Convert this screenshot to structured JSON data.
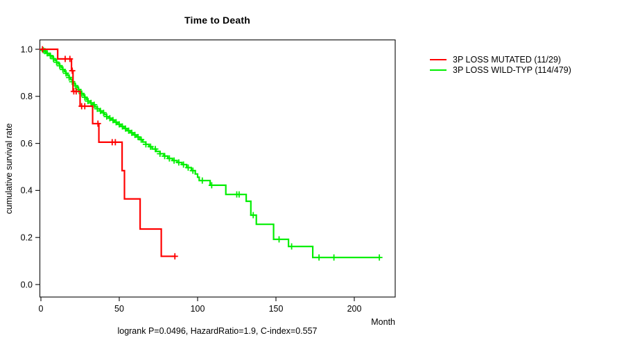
{
  "chart_data": {
    "type": "line",
    "subtype": "kaplan-meier-step-survival",
    "title": "Time to Death",
    "xlabel": "Month",
    "ylabel": "cumulative survival rate",
    "caption": "logrank P=0.0496, HazardRatio=1.9, C-index=0.557",
    "x_ticks": [
      0,
      50,
      100,
      150,
      200
    ],
    "y_ticks": [
      "0.0",
      "0.2",
      "0.4",
      "0.6",
      "0.8",
      "1.0"
    ],
    "xlim": [
      0,
      226
    ],
    "ylim": [
      0,
      1
    ],
    "grid": false,
    "legend_position": "right-outside",
    "series": [
      {
        "name": "3P LOSS MUTATED (11/29)",
        "color": "#ff0000",
        "start": [
          0,
          1.0
        ],
        "steps": [
          [
            10.7,
            0.959
          ],
          [
            19.5,
            0.909
          ],
          [
            20.5,
            0.821
          ],
          [
            25,
            0.758
          ],
          [
            33,
            0.684
          ],
          [
            37,
            0.605
          ],
          [
            51.8,
            0.484
          ],
          [
            53.3,
            0.364
          ],
          [
            63.3,
            0.236
          ],
          [
            76.8,
            0.12
          ]
        ],
        "end_month": 86,
        "censors": [
          [
            1,
            1.0
          ],
          [
            15.5,
            0.959
          ],
          [
            18.5,
            0.959
          ],
          [
            20,
            0.909
          ],
          [
            21,
            0.821
          ],
          [
            22.5,
            0.821
          ],
          [
            26,
            0.758
          ],
          [
            28,
            0.758
          ],
          [
            36.4,
            0.684
          ],
          [
            45.5,
            0.605
          ],
          [
            47.5,
            0.605
          ],
          [
            85.5,
            0.12
          ]
        ]
      },
      {
        "name": "3P LOSS WILD-TYP (114/479)",
        "color": "#00ee00",
        "start": [
          0,
          1.0
        ],
        "steps": [
          [
            1,
            0.996
          ],
          [
            2,
            0.992
          ],
          [
            3,
            0.988
          ],
          [
            4,
            0.983
          ],
          [
            5,
            0.979
          ],
          [
            6,
            0.973
          ],
          [
            7,
            0.967
          ],
          [
            8,
            0.96
          ],
          [
            9,
            0.953
          ],
          [
            10,
            0.945
          ],
          [
            11,
            0.938
          ],
          [
            12,
            0.93
          ],
          [
            13,
            0.922
          ],
          [
            14,
            0.914
          ],
          [
            15,
            0.906
          ],
          [
            16,
            0.898
          ],
          [
            17,
            0.889
          ],
          [
            18,
            0.88
          ],
          [
            19,
            0.871
          ],
          [
            20,
            0.862
          ],
          [
            21,
            0.853
          ],
          [
            22,
            0.845
          ],
          [
            23,
            0.837
          ],
          [
            24,
            0.829
          ],
          [
            25,
            0.82
          ],
          [
            26,
            0.812
          ],
          [
            27,
            0.804
          ],
          [
            28,
            0.796
          ],
          [
            29,
            0.788
          ],
          [
            30,
            0.78
          ],
          [
            31.5,
            0.772
          ],
          [
            33,
            0.764
          ],
          [
            34.5,
            0.755
          ],
          [
            36,
            0.747
          ],
          [
            37.5,
            0.738
          ],
          [
            39,
            0.73
          ],
          [
            40.5,
            0.722
          ],
          [
            42,
            0.714
          ],
          [
            43.5,
            0.707
          ],
          [
            45,
            0.699
          ],
          [
            47,
            0.69
          ],
          [
            49,
            0.681
          ],
          [
            51,
            0.672
          ],
          [
            53,
            0.663
          ],
          [
            55,
            0.654
          ],
          [
            57,
            0.645
          ],
          [
            59,
            0.636
          ],
          [
            61,
            0.627
          ],
          [
            63,
            0.616
          ],
          [
            65,
            0.606
          ],
          [
            67,
            0.596
          ],
          [
            69,
            0.586
          ],
          [
            71,
            0.576
          ],
          [
            73.5,
            0.566
          ],
          [
            76,
            0.556
          ],
          [
            78.5,
            0.546
          ],
          [
            81,
            0.536
          ],
          [
            84,
            0.527
          ],
          [
            87,
            0.519
          ],
          [
            90,
            0.51
          ],
          [
            93,
            0.497
          ],
          [
            96,
            0.484
          ],
          [
            98.5,
            0.47
          ],
          [
            100,
            0.456
          ],
          [
            101,
            0.442
          ],
          [
            108,
            0.422
          ],
          [
            118,
            0.383
          ],
          [
            131,
            0.354
          ],
          [
            134,
            0.295
          ],
          [
            137.5,
            0.256
          ],
          [
            148.5,
            0.192
          ],
          [
            158,
            0.162
          ],
          [
            173.5,
            0.115
          ]
        ],
        "end_month": 216.5,
        "censors": [
          [
            1.5,
            0.996
          ],
          [
            2.5,
            0.992
          ],
          [
            4,
            0.983
          ],
          [
            6,
            0.973
          ],
          [
            8,
            0.96
          ],
          [
            10,
            0.945
          ],
          [
            12,
            0.93
          ],
          [
            14,
            0.914
          ],
          [
            16,
            0.898
          ],
          [
            18,
            0.88
          ],
          [
            20,
            0.862
          ],
          [
            22,
            0.845
          ],
          [
            24,
            0.829
          ],
          [
            26,
            0.812
          ],
          [
            28,
            0.796
          ],
          [
            30,
            0.78
          ],
          [
            32,
            0.772
          ],
          [
            34,
            0.764
          ],
          [
            36,
            0.747
          ],
          [
            38,
            0.738
          ],
          [
            40,
            0.73
          ],
          [
            42,
            0.714
          ],
          [
            44,
            0.707
          ],
          [
            46,
            0.699
          ],
          [
            48,
            0.69
          ],
          [
            50,
            0.681
          ],
          [
            52,
            0.672
          ],
          [
            54,
            0.663
          ],
          [
            56,
            0.654
          ],
          [
            58,
            0.645
          ],
          [
            60,
            0.636
          ],
          [
            62,
            0.627
          ],
          [
            64,
            0.616
          ],
          [
            67,
            0.596
          ],
          [
            70,
            0.586
          ],
          [
            73,
            0.576
          ],
          [
            76,
            0.556
          ],
          [
            79,
            0.546
          ],
          [
            82,
            0.536
          ],
          [
            85,
            0.527
          ],
          [
            88,
            0.519
          ],
          [
            91,
            0.51
          ],
          [
            94,
            0.497
          ],
          [
            97,
            0.484
          ],
          [
            103,
            0.442
          ],
          [
            109,
            0.422
          ],
          [
            125,
            0.383
          ],
          [
            126.5,
            0.383
          ],
          [
            135.5,
            0.295
          ],
          [
            152,
            0.192
          ],
          [
            160,
            0.162
          ],
          [
            177.5,
            0.115
          ],
          [
            187,
            0.115
          ],
          [
            216,
            0.115
          ]
        ]
      }
    ]
  }
}
